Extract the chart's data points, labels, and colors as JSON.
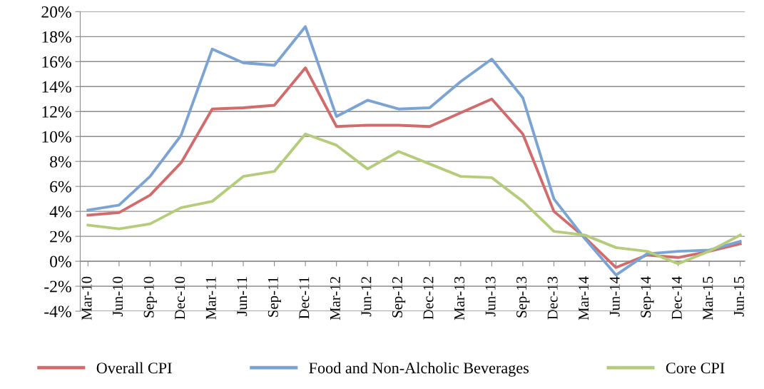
{
  "chart_data": {
    "type": "line",
    "categories": [
      "Mar-10",
      "Jun-10",
      "Sep-10",
      "Dec-10",
      "Mar-11",
      "Jun-11",
      "Sep-11",
      "Dec-11",
      "Mar-12",
      "Jun-12",
      "Sep-12",
      "Dec-12",
      "Mar-13",
      "Jun-13",
      "Sep-13",
      "Dec-13",
      "Mar-14",
      "Jun-14",
      "Sep-14",
      "Dec-14",
      "Mar-15",
      "Jun-15"
    ],
    "series": [
      {
        "name": "Overall CPI",
        "color": "#d26b6b",
        "values": [
          3.7,
          3.9,
          5.3,
          7.9,
          12.2,
          12.3,
          12.5,
          15.5,
          10.8,
          10.9,
          10.9,
          10.8,
          11.9,
          13.0,
          10.2,
          4.0,
          1.9,
          -0.5,
          0.5,
          0.3,
          0.8,
          1.4
        ]
      },
      {
        "name": "Food and Non-Alcholic Beverages",
        "color": "#7ba3d4",
        "values": [
          4.1,
          4.5,
          6.8,
          10.1,
          17.0,
          15.9,
          15.7,
          18.8,
          11.6,
          12.9,
          12.2,
          12.3,
          14.4,
          16.2,
          13.1,
          5.0,
          1.8,
          -1.1,
          0.6,
          0.8,
          0.9,
          1.6
        ]
      },
      {
        "name": "Core CPI",
        "color": "#b5cc7a",
        "values": [
          2.9,
          2.6,
          3.0,
          4.3,
          4.8,
          6.8,
          7.2,
          10.2,
          9.3,
          7.4,
          8.8,
          7.8,
          6.8,
          6.7,
          4.8,
          2.4,
          2.1,
          1.1,
          0.8,
          -0.2,
          0.8,
          2.1
        ]
      }
    ],
    "ylim": [
      -4,
      20
    ],
    "yticks": [
      {
        "value": -4,
        "label": "-4%"
      },
      {
        "value": -2,
        "label": "-2%"
      },
      {
        "value": 0,
        "label": "0%"
      },
      {
        "value": 2,
        "label": "2%"
      },
      {
        "value": 4,
        "label": "4%"
      },
      {
        "value": 6,
        "label": "6%"
      },
      {
        "value": 8,
        "label": "8%"
      },
      {
        "value": 10,
        "label": "10%"
      },
      {
        "value": 12,
        "label": "12%"
      },
      {
        "value": 14,
        "label": "14%"
      },
      {
        "value": 16,
        "label": "16%"
      },
      {
        "value": 18,
        "label": "18%"
      },
      {
        "value": 20,
        "label": "20%"
      }
    ],
    "grid": "y",
    "legend": "bottom",
    "marker": "none",
    "line_style": "solid"
  }
}
